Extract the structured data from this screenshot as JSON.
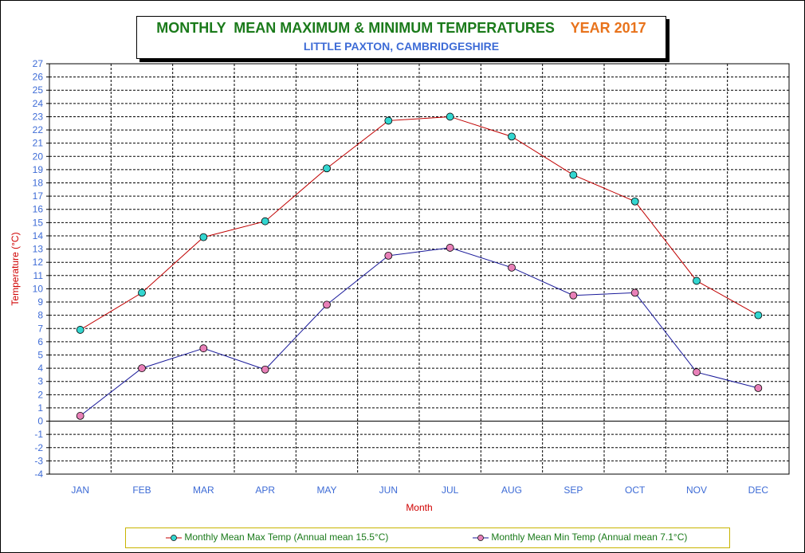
{
  "title": {
    "main": "MONTHLY  MEAN MAXIMUM & MINIMUM TEMPERATURES",
    "year": "YEAR 2017",
    "subtitle": "LITTLE PAXTON, CAMBRIDGESHIRE"
  },
  "colors": {
    "max_line": "#c00000",
    "max_marker": "#33d6d0",
    "min_line": "#1a1a9a",
    "min_marker": "#e880b8",
    "axis_text": "#3d6bd6",
    "axis_label": "#d00000",
    "legend_text": "#1a7a1a"
  },
  "legend": {
    "max_label": "Monthly Mean Max Temp (Annual mean 15.5°C)",
    "min_label": "Monthly Mean Min Temp (Annual mean 7.1°C)"
  },
  "chart_data": {
    "type": "line",
    "xlabel": "Month",
    "ylabel": "Temperature (°C)",
    "ylim": [
      -4,
      27
    ],
    "grid": true,
    "legend_position": "bottom",
    "categories": [
      "JAN",
      "FEB",
      "MAR",
      "APR",
      "MAY",
      "JUN",
      "JUL",
      "AUG",
      "SEP",
      "OCT",
      "NOV",
      "DEC"
    ],
    "series": [
      {
        "name": "Monthly Mean Max Temp (Annual mean 15.5°C)",
        "values": [
          6.9,
          9.7,
          13.9,
          15.1,
          19.1,
          22.7,
          23.0,
          21.5,
          18.6,
          16.6,
          10.6,
          8.0
        ]
      },
      {
        "name": "Monthly Mean Min Temp (Annual mean 7.1°C)",
        "values": [
          0.4,
          4.0,
          5.5,
          3.9,
          8.8,
          12.5,
          13.1,
          11.6,
          9.5,
          9.7,
          3.7,
          2.5
        ]
      }
    ]
  }
}
